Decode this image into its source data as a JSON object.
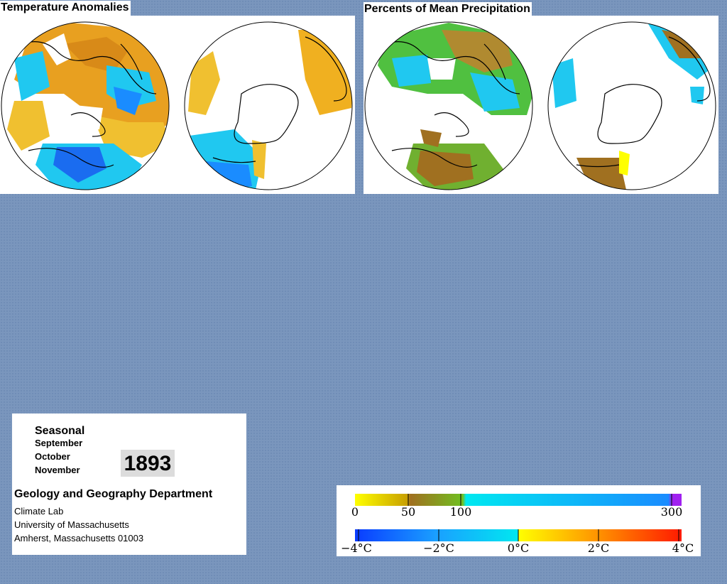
{
  "temperature": {
    "title": "Temperature Anomalies"
  },
  "precipitation": {
    "title": "Percents of Mean Precipitation"
  },
  "info": {
    "season": "Seasonal",
    "months": [
      "September",
      "October",
      "November"
    ],
    "year": "1893",
    "department": "Geology and Geography Department",
    "lines": [
      "Climate Lab",
      "University of Massachusetts",
      "Amherst, Massachusetts 01003"
    ]
  },
  "precip_scale": {
    "labels": [
      "0",
      "50",
      "100",
      "300"
    ],
    "colors": [
      "#ffff00",
      "#c8a000",
      "#a07020",
      "#70c020",
      "#00e8f0",
      "#1a8cff",
      "#a020f0"
    ]
  },
  "temp_scale": {
    "labels": [
      "−4°C",
      "−2°C",
      "0°C",
      "2°C",
      "4°C"
    ],
    "colors": [
      "#0a3cff",
      "#1aa0ff",
      "#00e8f0",
      "#ffff00",
      "#ff8000",
      "#ff1a00"
    ]
  },
  "colors": {
    "background": "#7a96bd",
    "warm": "#f0b020",
    "cool": "#1aa0ff",
    "dry": "#a07020",
    "wet": "#40c040"
  }
}
